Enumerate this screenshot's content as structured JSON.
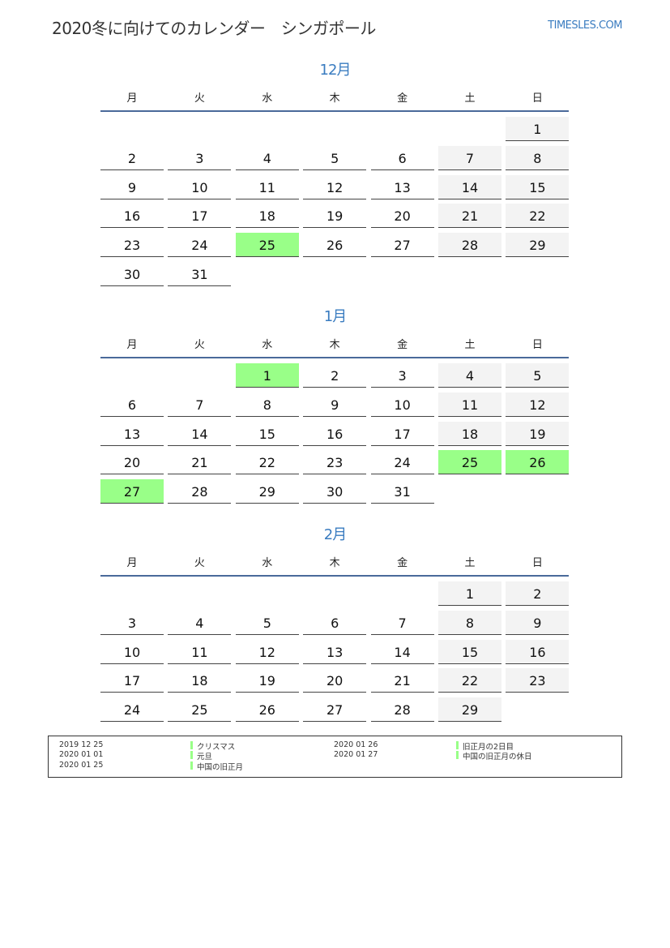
{
  "header": {
    "title": "2020冬に向けてのカレンダー　シンガポール",
    "site": "TIMESLES.COM"
  },
  "weekdays": [
    "月",
    "火",
    "水",
    "木",
    "金",
    "土",
    "日"
  ],
  "colors": {
    "accent": "#3a7cc0",
    "holiday": "#99ff88",
    "weekend": "#f3f3f3",
    "rule": "#4a6a9a"
  },
  "months": [
    {
      "title": "12月",
      "first_weekday": 6,
      "days": 31,
      "holidays": [
        25
      ]
    },
    {
      "title": "1月",
      "first_weekday": 2,
      "days": 31,
      "holidays": [
        1,
        25,
        26,
        27
      ]
    },
    {
      "title": "2月",
      "first_weekday": 5,
      "days": 29,
      "holidays": []
    }
  ],
  "legend": [
    {
      "date": "2019 12 25",
      "name": "クリスマス"
    },
    {
      "date": "2020 01 01",
      "name": "元旦"
    },
    {
      "date": "2020 01 25",
      "name": "中国の旧正月"
    },
    {
      "date": "2020 01 26",
      "name": "旧正月の2日目"
    },
    {
      "date": "2020 01 27",
      "name": "中国の旧正月の休日"
    }
  ]
}
